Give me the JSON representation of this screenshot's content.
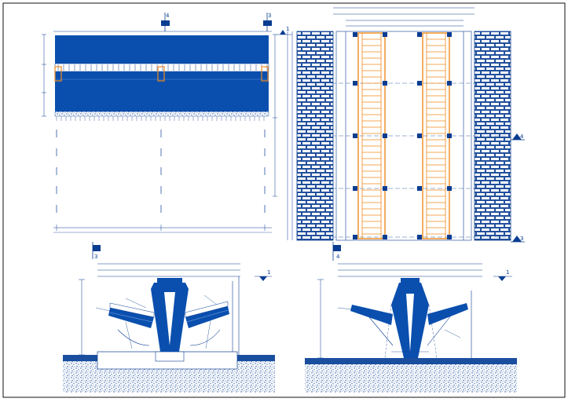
{
  "drawing": {
    "ink_color": "#0a3d91",
    "accent_color": "#f08a1c",
    "ground_color": "#1a4fa0",
    "background_color": "#ffffff"
  },
  "elevation_view": {
    "section_marks": [
      "4",
      "3"
    ],
    "level_marks": [
      "1"
    ]
  },
  "plan_view": {
    "section_marks": [
      "4",
      "3"
    ]
  },
  "section_left": {
    "section_marks": [
      "3"
    ],
    "level_marks": [
      "1"
    ]
  },
  "section_right": {
    "section_marks": [
      "4"
    ],
    "level_marks": [
      "1"
    ]
  }
}
